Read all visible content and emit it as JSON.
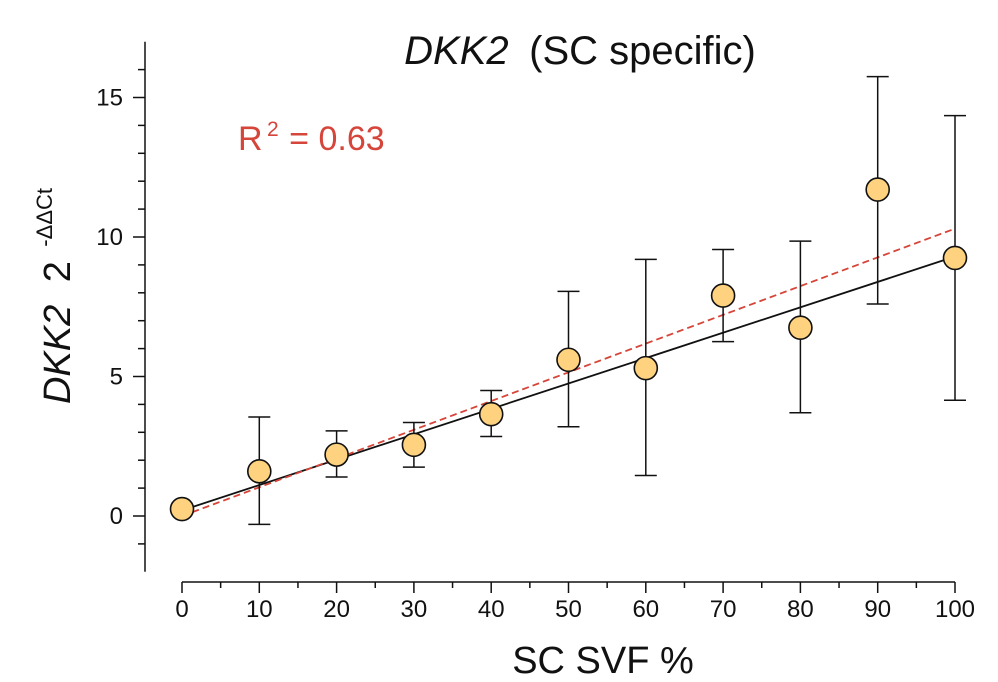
{
  "chart_data": {
    "type": "scatter",
    "title_gene": "DKK2",
    "title_suffix": "(SC specific)",
    "xlabel": "SC SVF %",
    "ylabel_gene": "DKK2",
    "ylabel_base": "2",
    "ylabel_superscript": "-ΔΔCt",
    "r2_label": "R",
    "r2_superscript": "2",
    "r2_value_text": "= 0.63",
    "xlim": [
      0,
      100
    ],
    "ylim": [
      -2,
      17
    ],
    "x_ticks": [
      0,
      10,
      20,
      30,
      40,
      50,
      60,
      70,
      80,
      90,
      100
    ],
    "y_ticks": [
      0,
      5,
      10,
      15
    ],
    "points": [
      {
        "x": 0,
        "y": 0.25,
        "err_low": 0.25,
        "err_high": 0.25
      },
      {
        "x": 10,
        "y": 1.6,
        "err_low": -0.3,
        "err_high": 3.55
      },
      {
        "x": 20,
        "y": 2.2,
        "err_low": 1.4,
        "err_high": 3.05
      },
      {
        "x": 30,
        "y": 2.55,
        "err_low": 1.75,
        "err_high": 3.35
      },
      {
        "x": 40,
        "y": 3.65,
        "err_low": 2.85,
        "err_high": 4.5
      },
      {
        "x": 50,
        "y": 5.6,
        "err_low": 3.2,
        "err_high": 8.05
      },
      {
        "x": 60,
        "y": 5.3,
        "err_low": 1.45,
        "err_high": 9.2
      },
      {
        "x": 70,
        "y": 7.9,
        "err_low": 6.25,
        "err_high": 9.55
      },
      {
        "x": 80,
        "y": 6.75,
        "err_low": 3.7,
        "err_high": 9.85
      },
      {
        "x": 90,
        "y": 11.7,
        "err_low": 7.6,
        "err_high": 15.75
      },
      {
        "x": 100,
        "y": 9.25,
        "err_low": 4.15,
        "err_high": 14.35
      }
    ],
    "fit_line": {
      "x": [
        0,
        100
      ],
      "y": [
        0.2,
        9.3
      ],
      "color": "#111111",
      "style": "solid"
    },
    "fit_dashed": {
      "x": [
        0,
        100
      ],
      "y": [
        0.0,
        10.3
      ],
      "color": "#d6453a",
      "style": "dashed"
    },
    "marker_fill": "#ffd27f",
    "marker_edge": "#111111",
    "r2_color": "#d6453a"
  }
}
